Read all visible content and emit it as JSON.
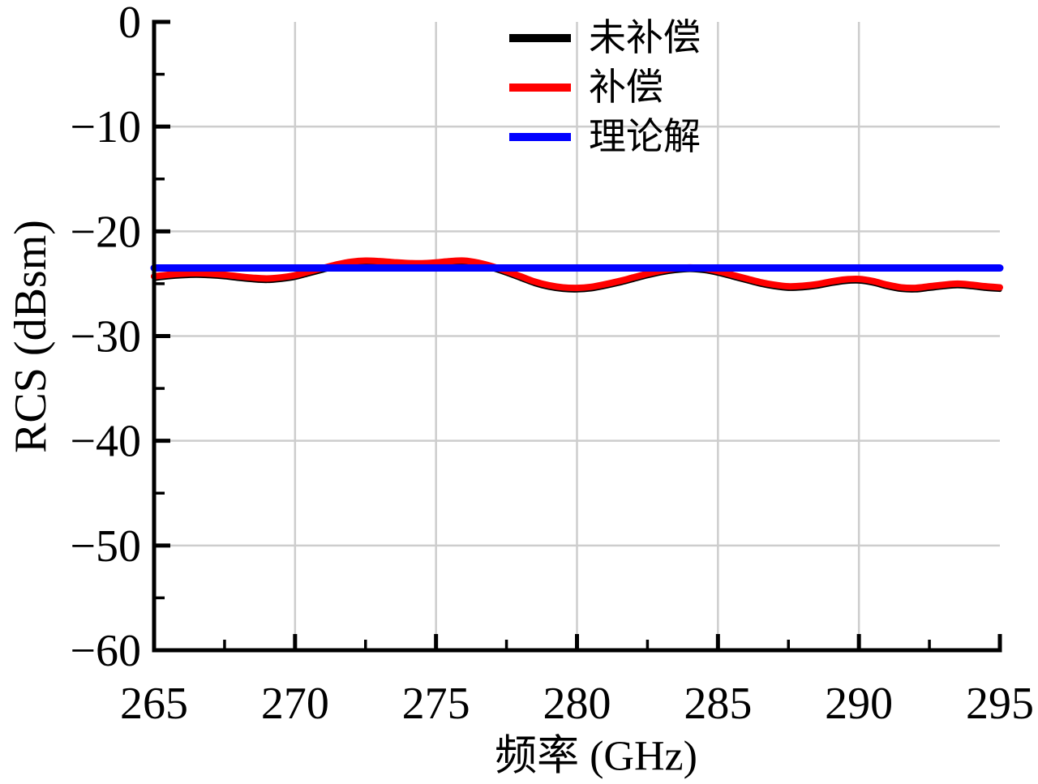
{
  "chart_data": {
    "type": "line",
    "title": "",
    "xlabel": "频率 (GHz)",
    "ylabel": "RCS (dBsm)",
    "xlim": [
      265,
      295
    ],
    "ylim": [
      -60,
      0
    ],
    "grid": true,
    "grid_color": "#cdcdcd",
    "axis_color": "#000000",
    "legend_position": "top-center-inside-no-frame",
    "x_ticks": {
      "minor_step": 2.5,
      "major": [
        {
          "v": 265,
          "label": "265"
        },
        {
          "v": 270,
          "label": "270"
        },
        {
          "v": 275,
          "label": "275"
        },
        {
          "v": 280,
          "label": "280"
        },
        {
          "v": 285,
          "label": "285"
        },
        {
          "v": 290,
          "label": "290"
        },
        {
          "v": 295,
          "label": "295"
        }
      ]
    },
    "y_ticks": {
      "minor_step": 5,
      "major": [
        {
          "v": 0,
          "label": "0"
        },
        {
          "v": -10,
          "label": "−10"
        },
        {
          "v": -20,
          "label": "−20"
        },
        {
          "v": -30,
          "label": "−30"
        },
        {
          "v": -40,
          "label": "−40"
        },
        {
          "v": -50,
          "label": "−50"
        },
        {
          "v": -60,
          "label": "−60"
        }
      ]
    },
    "x": [
      265,
      265.5,
      266,
      266.5,
      267,
      267.5,
      268,
      268.5,
      269,
      269.5,
      270,
      270.5,
      271,
      271.5,
      272,
      272.5,
      273,
      273.5,
      274,
      274.5,
      275,
      275.5,
      276,
      276.5,
      277,
      277.5,
      278,
      278.5,
      279,
      279.5,
      280,
      280.5,
      281,
      281.5,
      282,
      282.5,
      283,
      283.5,
      284,
      284.5,
      285,
      285.5,
      286,
      286.5,
      287,
      287.5,
      288,
      288.5,
      289,
      289.5,
      290,
      290.5,
      291,
      291.5,
      292,
      292.5,
      293,
      293.5,
      294,
      294.5,
      295
    ],
    "series": [
      {
        "name": "未补偿",
        "color": "#000000",
        "width": 5,
        "y": [
          -24.55,
          -24.4,
          -24.3,
          -24.25,
          -24.3,
          -24.4,
          -24.55,
          -24.68,
          -24.75,
          -24.65,
          -24.45,
          -24.1,
          -23.75,
          -23.4,
          -23.15,
          -23.05,
          -23.1,
          -23.2,
          -23.28,
          -23.3,
          -23.22,
          -23.1,
          -23.05,
          -23.25,
          -23.6,
          -24.05,
          -24.55,
          -25.05,
          -25.4,
          -25.6,
          -25.65,
          -25.55,
          -25.3,
          -25.0,
          -24.65,
          -24.3,
          -24.0,
          -23.8,
          -23.7,
          -23.8,
          -24.05,
          -24.4,
          -24.75,
          -25.1,
          -25.35,
          -25.5,
          -25.45,
          -25.3,
          -25.05,
          -24.85,
          -24.8,
          -25.0,
          -25.35,
          -25.6,
          -25.65,
          -25.5,
          -25.35,
          -25.25,
          -25.35,
          -25.5,
          -25.6
        ]
      },
      {
        "name": "补偿",
        "color": "#ff0000",
        "width": 8,
        "y": [
          -24.3,
          -24.15,
          -24.05,
          -24.0,
          -24.05,
          -24.15,
          -24.3,
          -24.43,
          -24.5,
          -24.4,
          -24.2,
          -23.85,
          -23.5,
          -23.15,
          -22.9,
          -22.8,
          -22.85,
          -22.95,
          -23.03,
          -23.05,
          -22.97,
          -22.85,
          -22.8,
          -23.0,
          -23.35,
          -23.8,
          -24.3,
          -24.8,
          -25.15,
          -25.35,
          -25.4,
          -25.3,
          -25.05,
          -24.75,
          -24.4,
          -24.05,
          -23.75,
          -23.55,
          -23.45,
          -23.55,
          -23.8,
          -24.15,
          -24.5,
          -24.85,
          -25.1,
          -25.25,
          -25.2,
          -25.05,
          -24.8,
          -24.6,
          -24.55,
          -24.75,
          -25.1,
          -25.35,
          -25.4,
          -25.25,
          -25.1,
          -25.0,
          -25.1,
          -25.25,
          -25.35
        ]
      },
      {
        "name": "理论解",
        "color": "#0000ff",
        "width": 9,
        "x": [
          265,
          295
        ],
        "y": [
          -23.5,
          -23.5
        ]
      }
    ]
  }
}
